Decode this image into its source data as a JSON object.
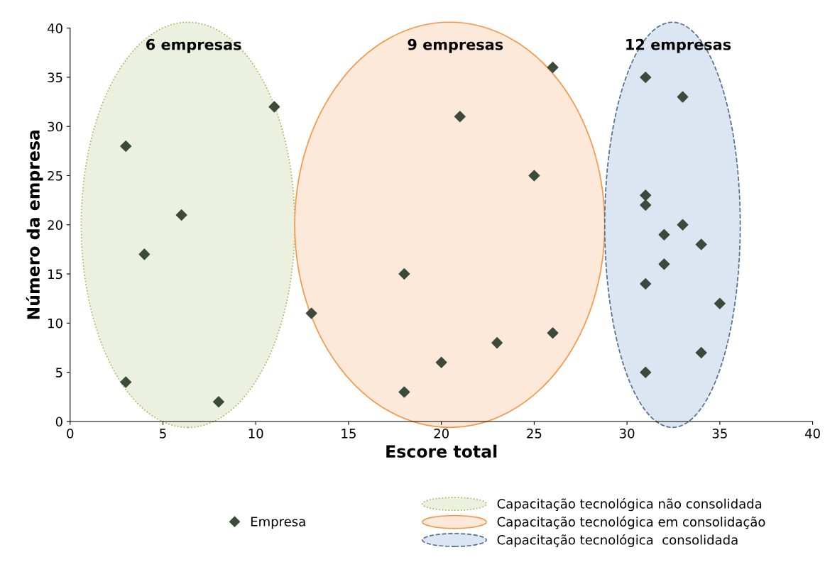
{
  "chart_data": {
    "type": "scatter",
    "xlabel": "Escore total",
    "ylabel": "Número da empresa",
    "series": [
      {
        "name": "Empresa",
        "color": "#3b4a3b",
        "x": [
          3,
          3,
          4,
          6,
          8,
          11,
          13,
          18,
          18,
          20,
          21,
          23,
          25,
          26,
          26,
          31,
          33,
          31,
          31,
          32,
          33,
          34,
          32,
          31,
          35,
          34,
          31
        ],
        "values": [
          28,
          4,
          17,
          21,
          2,
          32,
          11,
          15,
          3,
          6,
          31,
          8,
          25,
          36,
          9,
          35,
          33,
          23,
          22,
          19,
          20,
          18,
          16,
          14,
          12,
          7,
          5
        ]
      }
    ],
    "marker": "diamond",
    "annotations": [
      "6 empresas",
      "9 empresas",
      "12 empresas",
      "Capacitação tecnológica não consolidada",
      "Capacitação tecnológica em consolidação",
      "Capacitação tecnológica  consolidada"
    ],
    "xlim": [
      0,
      40
    ],
    "ylim": [
      0,
      40
    ],
    "xticks": [
      0,
      5,
      10,
      15,
      20,
      25,
      30,
      35,
      40
    ],
    "yticks": [
      0,
      5,
      10,
      15,
      20,
      25,
      30,
      35,
      40
    ],
    "grid": false,
    "legend": "bottom"
  }
}
